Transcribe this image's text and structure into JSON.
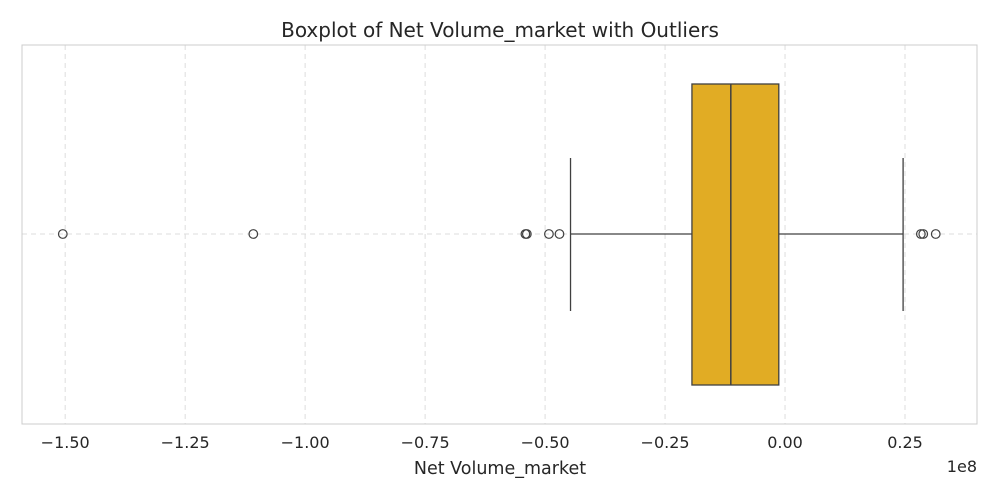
{
  "chart_data": {
    "type": "boxplot",
    "title": "Boxplot of Net Volume_market with Outliers",
    "xlabel": "Net Volume_market",
    "ylabel": "",
    "x_scale_label": "1e8",
    "x_ticks": [
      -1.5,
      -1.25,
      -1.0,
      -0.75,
      -0.5,
      -0.25,
      0.0,
      0.25
    ],
    "x_tick_labels": [
      "−1.50",
      "−1.25",
      "−1.00",
      "−0.75",
      "−0.50",
      "−0.25",
      "0.00",
      "0.25"
    ],
    "xlim": [
      -1.59,
      0.4
    ],
    "grid": true,
    "color": "#E1AC24",
    "box": {
      "whisker_low": -0.447,
      "q1": -0.194,
      "median": -0.113,
      "q3": -0.013,
      "whisker_high": 0.246
    },
    "outliers": [
      -1.505,
      -1.108,
      -0.541,
      -0.538,
      -0.492,
      -0.47,
      0.283,
      0.288,
      0.314
    ]
  }
}
